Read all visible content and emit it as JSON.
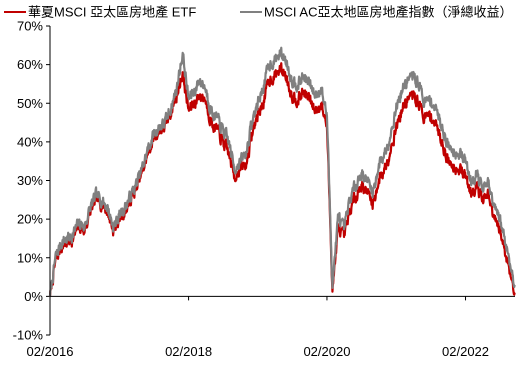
{
  "chart_data": {
    "type": "line",
    "title": "",
    "xlabel": "",
    "ylabel": "",
    "x_range": [
      "2016-02-01",
      "2022-10-20"
    ],
    "x_tick_labels": [
      "02/2016",
      "02/2018",
      "02/2020",
      "02/2022"
    ],
    "x_tick_dates": [
      "2016-02-01",
      "2018-02-01",
      "2020-02-01",
      "2022-02-01"
    ],
    "ylim": [
      -10,
      70
    ],
    "y_tick_values": [
      -10,
      0,
      10,
      20,
      30,
      40,
      50,
      60,
      70
    ],
    "y_tick_labels": [
      "-10%",
      "0%",
      "10%",
      "20%",
      "30%",
      "40%",
      "50%",
      "60%",
      "70%"
    ],
    "grid": false,
    "legend_position": "top",
    "series": [
      {
        "name": "華夏MSCI 亞太區房地產 ETF",
        "color": "#C00000",
        "points": [
          [
            "2016-02-01",
            0
          ],
          [
            "2016-03-01",
            9
          ],
          [
            "2016-04-01",
            13
          ],
          [
            "2016-05-01",
            14
          ],
          [
            "2016-06-01",
            15
          ],
          [
            "2016-07-01",
            18
          ],
          [
            "2016-08-01",
            17
          ],
          [
            "2016-09-01",
            22
          ],
          [
            "2016-10-01",
            25
          ],
          [
            "2016-11-01",
            24
          ],
          [
            "2016-12-01",
            22
          ],
          [
            "2017-01-01",
            17
          ],
          [
            "2017-02-01",
            20
          ],
          [
            "2017-03-01",
            22
          ],
          [
            "2017-04-01",
            25
          ],
          [
            "2017-05-01",
            28
          ],
          [
            "2017-06-01",
            32
          ],
          [
            "2017-07-01",
            37
          ],
          [
            "2017-08-01",
            41
          ],
          [
            "2017-09-01",
            43
          ],
          [
            "2017-10-01",
            44
          ],
          [
            "2017-11-01",
            48
          ],
          [
            "2017-12-01",
            52
          ],
          [
            "2018-01-01",
            58
          ],
          [
            "2018-02-01",
            48
          ],
          [
            "2018-03-01",
            50
          ],
          [
            "2018-04-01",
            52
          ],
          [
            "2018-05-01",
            51
          ],
          [
            "2018-06-01",
            45
          ],
          [
            "2018-07-01",
            43
          ],
          [
            "2018-08-01",
            40
          ],
          [
            "2018-09-01",
            37
          ],
          [
            "2018-10-01",
            31
          ],
          [
            "2018-11-01",
            33
          ],
          [
            "2018-12-01",
            34
          ],
          [
            "2019-01-01",
            42
          ],
          [
            "2019-02-01",
            47
          ],
          [
            "2019-03-01",
            50
          ],
          [
            "2019-04-01",
            56
          ],
          [
            "2019-05-01",
            57
          ],
          [
            "2019-06-01",
            59
          ],
          [
            "2019-07-01",
            57
          ],
          [
            "2019-08-01",
            52
          ],
          [
            "2019-09-01",
            51
          ],
          [
            "2019-10-01",
            53
          ],
          [
            "2019-11-01",
            51
          ],
          [
            "2019-12-01",
            48
          ],
          [
            "2020-01-01",
            50
          ],
          [
            "2020-02-01",
            44
          ],
          [
            "2020-03-01",
            2
          ],
          [
            "2020-04-01",
            18
          ],
          [
            "2020-05-01",
            15
          ],
          [
            "2020-06-01",
            22
          ],
          [
            "2020-07-01",
            26
          ],
          [
            "2020-08-01",
            29
          ],
          [
            "2020-09-01",
            27
          ],
          [
            "2020-10-01",
            24
          ],
          [
            "2020-11-01",
            30
          ],
          [
            "2020-12-01",
            33
          ],
          [
            "2021-01-01",
            38
          ],
          [
            "2021-02-01",
            44
          ],
          [
            "2021-03-01",
            48
          ],
          [
            "2021-04-01",
            51
          ],
          [
            "2021-05-01",
            52
          ],
          [
            "2021-06-01",
            50
          ],
          [
            "2021-07-01",
            46
          ],
          [
            "2021-08-01",
            47
          ],
          [
            "2021-09-01",
            44
          ],
          [
            "2021-10-01",
            40
          ],
          [
            "2021-11-01",
            35
          ],
          [
            "2021-12-01",
            34
          ],
          [
            "2022-01-01",
            33
          ],
          [
            "2022-02-01",
            31
          ],
          [
            "2022-03-01",
            27
          ],
          [
            "2022-04-01",
            29
          ],
          [
            "2022-05-01",
            25
          ],
          [
            "2022-06-01",
            26
          ],
          [
            "2022-07-01",
            20
          ],
          [
            "2022-08-01",
            17
          ],
          [
            "2022-09-01",
            11
          ],
          [
            "2022-10-01",
            5
          ],
          [
            "2022-10-20",
            1
          ]
        ]
      },
      {
        "name": "MSCI AC亞太地區房地產指數（淨總收益）",
        "color": "#808080",
        "points": [
          [
            "2016-02-01",
            0
          ],
          [
            "2016-03-01",
            10
          ],
          [
            "2016-04-01",
            14
          ],
          [
            "2016-05-01",
            15
          ],
          [
            "2016-06-01",
            16
          ],
          [
            "2016-07-01",
            19
          ],
          [
            "2016-08-01",
            18
          ],
          [
            "2016-09-01",
            23
          ],
          [
            "2016-10-01",
            26
          ],
          [
            "2016-11-01",
            25
          ],
          [
            "2016-12-01",
            23
          ],
          [
            "2017-01-01",
            18
          ],
          [
            "2017-02-01",
            21
          ],
          [
            "2017-03-01",
            23
          ],
          [
            "2017-04-01",
            26
          ],
          [
            "2017-05-01",
            29
          ],
          [
            "2017-06-01",
            33
          ],
          [
            "2017-07-01",
            38
          ],
          [
            "2017-08-01",
            42
          ],
          [
            "2017-09-01",
            44
          ],
          [
            "2017-10-01",
            45
          ],
          [
            "2017-11-01",
            49
          ],
          [
            "2017-12-01",
            54
          ],
          [
            "2018-01-01",
            63
          ],
          [
            "2018-02-01",
            51
          ],
          [
            "2018-03-01",
            53
          ],
          [
            "2018-04-01",
            56
          ],
          [
            "2018-05-01",
            54
          ],
          [
            "2018-06-01",
            48
          ],
          [
            "2018-07-01",
            46
          ],
          [
            "2018-08-01",
            43
          ],
          [
            "2018-09-01",
            40
          ],
          [
            "2018-10-01",
            33
          ],
          [
            "2018-11-01",
            35
          ],
          [
            "2018-12-01",
            37
          ],
          [
            "2019-01-01",
            45
          ],
          [
            "2019-02-01",
            50
          ],
          [
            "2019-03-01",
            54
          ],
          [
            "2019-04-01",
            60
          ],
          [
            "2019-05-01",
            61
          ],
          [
            "2019-06-01",
            63
          ],
          [
            "2019-07-01",
            61
          ],
          [
            "2019-08-01",
            56
          ],
          [
            "2019-09-01",
            55
          ],
          [
            "2019-10-01",
            57
          ],
          [
            "2019-11-01",
            55
          ],
          [
            "2019-12-01",
            52
          ],
          [
            "2020-01-01",
            54
          ],
          [
            "2020-02-01",
            47
          ],
          [
            "2020-03-01",
            3
          ],
          [
            "2020-04-01",
            21
          ],
          [
            "2020-05-01",
            17
          ],
          [
            "2020-06-01",
            25
          ],
          [
            "2020-07-01",
            29
          ],
          [
            "2020-08-01",
            32
          ],
          [
            "2020-09-01",
            30
          ],
          [
            "2020-10-01",
            27
          ],
          [
            "2020-11-01",
            34
          ],
          [
            "2020-12-01",
            37
          ],
          [
            "2021-01-01",
            42
          ],
          [
            "2021-02-01",
            49
          ],
          [
            "2021-03-01",
            53
          ],
          [
            "2021-04-01",
            56
          ],
          [
            "2021-05-01",
            57
          ],
          [
            "2021-06-01",
            55
          ],
          [
            "2021-07-01",
            50
          ],
          [
            "2021-08-01",
            51
          ],
          [
            "2021-09-01",
            48
          ],
          [
            "2021-10-01",
            44
          ],
          [
            "2021-11-01",
            39
          ],
          [
            "2021-12-01",
            38
          ],
          [
            "2022-01-01",
            37
          ],
          [
            "2022-02-01",
            35
          ],
          [
            "2022-03-01",
            30
          ],
          [
            "2022-04-01",
            32
          ],
          [
            "2022-05-01",
            28
          ],
          [
            "2022-06-01",
            29
          ],
          [
            "2022-07-01",
            23
          ],
          [
            "2022-08-01",
            20
          ],
          [
            "2022-09-01",
            14
          ],
          [
            "2022-10-01",
            7
          ],
          [
            "2022-10-20",
            3
          ]
        ]
      }
    ]
  }
}
